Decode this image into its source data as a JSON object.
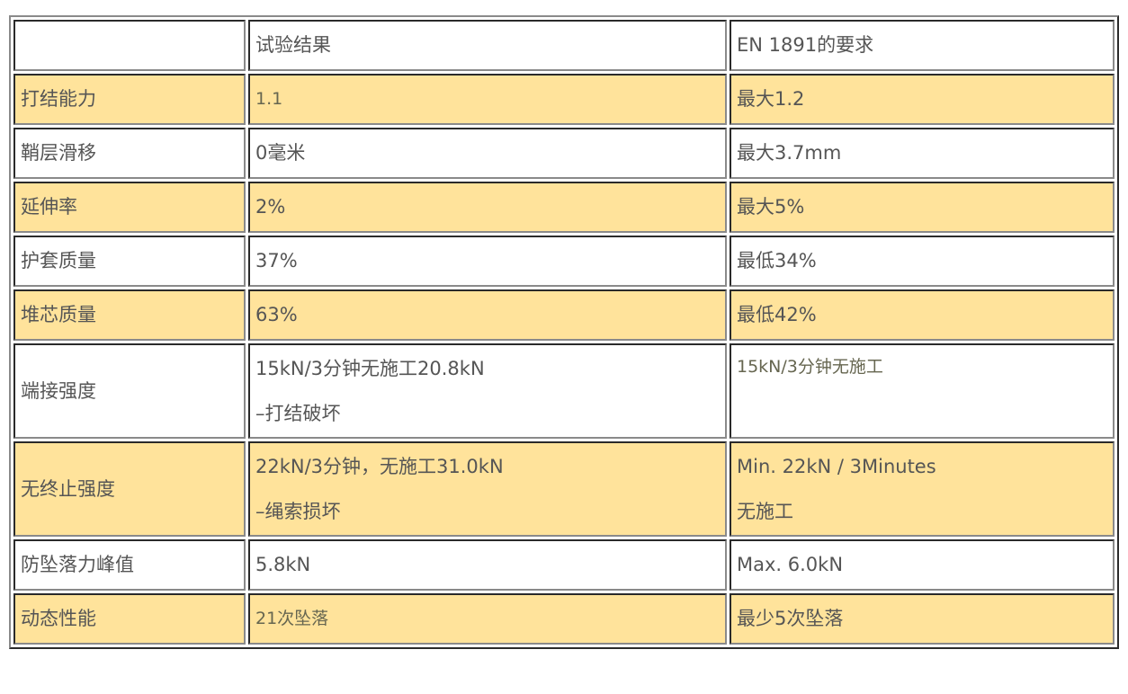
{
  "header": [
    "",
    "试验结果",
    "EN 1891的要求"
  ],
  "rows": [
    {
      "label": "打结能力",
      "result": [
        "1.1"
      ],
      "requirement": [
        "最大1.2"
      ],
      "highlight": true
    },
    {
      "label": "鞘层滑移",
      "result": [
        "0毫米"
      ],
      "requirement": [
        "最大3.7mm"
      ],
      "highlight": false
    },
    {
      "label": "延伸率",
      "result": [
        "2%"
      ],
      "requirement": [
        "最大5%"
      ],
      "highlight": true
    },
    {
      "label": "护套质量",
      "result": [
        "37%"
      ],
      "requirement": [
        "最低34%"
      ],
      "highlight": false
    },
    {
      "label": "堆芯质量",
      "result": [
        "63%"
      ],
      "requirement": [
        "最低42%"
      ],
      "highlight": true
    },
    {
      "label": "端接强度",
      "result": [
        "15kN/3分钟无施工20.8kN",
        "–打结破坏"
      ],
      "requirement": [
        "15kN/3分钟无施工"
      ],
      "highlight": false
    },
    {
      "label": "无终止强度",
      "result": [
        "22kN/3分钟，无施工31.0kN",
        "–绳索损坏"
      ],
      "requirement": [
        "Min. 22kN / 3Minutes",
        "无施工"
      ],
      "highlight": true
    },
    {
      "label": "防坠落力峰值",
      "result": [
        "5.8kN"
      ],
      "requirement": [
        "Max. 6.0kN"
      ],
      "highlight": false
    },
    {
      "label": "动态性能",
      "result": [
        "21次坠落"
      ],
      "requirement": [
        "最少5次坠落"
      ],
      "highlight": true
    }
  ],
  "colors": {
    "highlight": "#FFE39B",
    "text": "#555555"
  }
}
